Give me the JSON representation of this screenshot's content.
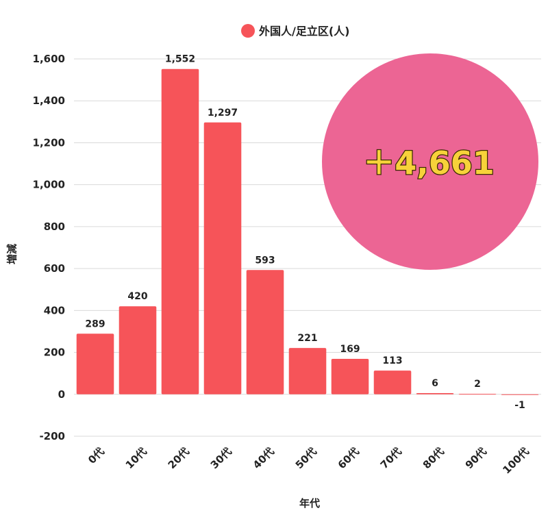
{
  "chart_data": {
    "type": "bar",
    "legend": {
      "label": "外国人/足立区(人)",
      "placement": "top-center"
    },
    "xlabel": "年代",
    "ylabel": "増減",
    "ylim": [
      -200,
      1600
    ],
    "yticks": [
      -200,
      0,
      200,
      400,
      600,
      800,
      1000,
      1200,
      1400,
      1600
    ],
    "ytick_labels": [
      "-200",
      "0",
      "200",
      "400",
      "600",
      "800",
      "1,000",
      "1,200",
      "1,400",
      "1,600"
    ],
    "grid": true,
    "categories": [
      "0代",
      "10代",
      "20代",
      "30代",
      "40代",
      "50代",
      "60代",
      "70代",
      "80代",
      "90代",
      "100代"
    ],
    "values": [
      289,
      420,
      1552,
      1297,
      593,
      221,
      169,
      113,
      6,
      2,
      -1
    ],
    "data_labels": [
      "289",
      "420",
      "1,552",
      "1,297",
      "593",
      "221",
      "169",
      "113",
      "6",
      "2",
      "-1"
    ],
    "bar_color": "#f65459"
  },
  "badge": {
    "text": "＋4,661",
    "color": "#ec6594"
  }
}
